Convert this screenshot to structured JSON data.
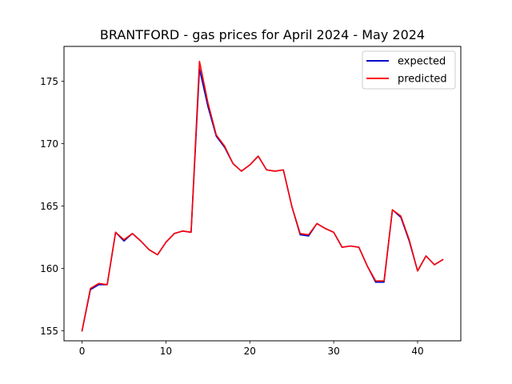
{
  "chart_data": {
    "type": "line",
    "title": "BRANTFORD - gas prices for April 2024 - May 2024",
    "xlabel": "",
    "ylabel": "",
    "xlim": [
      -2.15,
      45.15
    ],
    "ylim": [
      154.2,
      177.8
    ],
    "xticks": [
      0,
      10,
      20,
      30,
      40
    ],
    "yticks": [
      155,
      160,
      165,
      170,
      175
    ],
    "grid": false,
    "legend_position": "upper right",
    "x": [
      0,
      1,
      2,
      3,
      4,
      5,
      6,
      7,
      8,
      9,
      10,
      11,
      12,
      13,
      14,
      15,
      16,
      17,
      18,
      19,
      20,
      21,
      22,
      23,
      24,
      25,
      26,
      27,
      28,
      29,
      30,
      31,
      32,
      33,
      34,
      35,
      36,
      37,
      38,
      39,
      40,
      41,
      42,
      43
    ],
    "series": [
      {
        "name": "expected",
        "color": "#0000cc",
        "values": [
          155.0,
          158.3,
          158.7,
          158.7,
          162.9,
          162.2,
          162.8,
          162.2,
          161.5,
          161.1,
          162.1,
          162.8,
          163.0,
          162.9,
          176.0,
          173.0,
          170.6,
          169.7,
          168.4,
          167.8,
          168.3,
          169.0,
          167.9,
          167.8,
          167.9,
          165.0,
          162.7,
          162.6,
          163.6,
          163.2,
          162.9,
          161.7,
          161.8,
          161.7,
          160.2,
          158.9,
          158.9,
          164.7,
          164.1,
          162.2,
          159.8,
          161.0,
          160.3,
          160.7
        ]
      },
      {
        "name": "predicted",
        "color": "#ff0000",
        "values": [
          155.0,
          158.4,
          158.8,
          158.7,
          162.9,
          162.3,
          162.8,
          162.2,
          161.5,
          161.1,
          162.1,
          162.8,
          163.0,
          162.9,
          176.6,
          173.3,
          170.7,
          169.8,
          168.4,
          167.8,
          168.3,
          169.0,
          167.9,
          167.8,
          167.9,
          165.0,
          162.8,
          162.7,
          163.6,
          163.2,
          162.9,
          161.7,
          161.8,
          161.7,
          160.2,
          159.0,
          159.0,
          164.7,
          164.2,
          162.3,
          159.8,
          161.0,
          160.3,
          160.7
        ]
      }
    ]
  }
}
